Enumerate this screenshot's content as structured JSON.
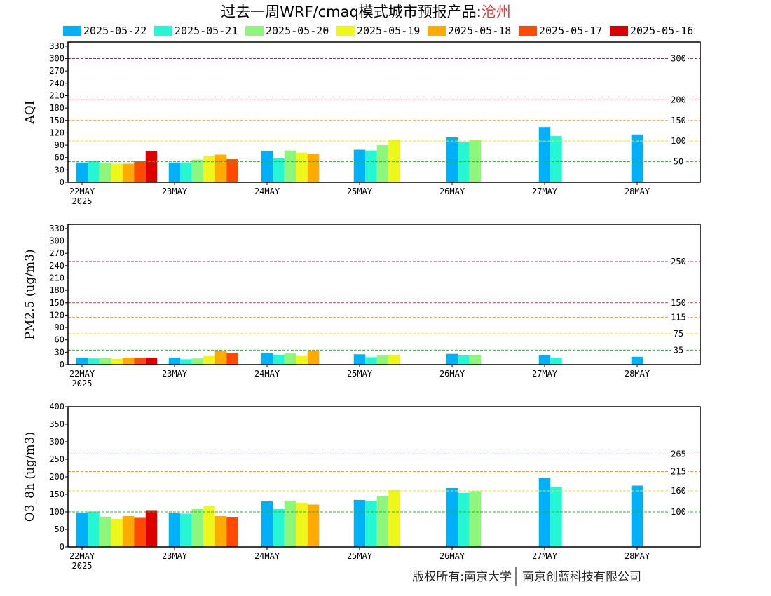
{
  "title_main": "过去一周WRF/cmaq模式城市预报产品:",
  "title_city": "沧州",
  "copyright_left": "版权所有:南京大学",
  "copyright_right": "南京创蓝科技有限公司",
  "colors": {
    "2025-05-22": "#00b0f8",
    "2025-05-21": "#25f7d4",
    "2025-05-20": "#8ef77b",
    "2025-05-19": "#eef719",
    "2025-05-18": "#ffab00",
    "2025-05-17": "#ff4a00",
    "2025-05-16": "#dd0000",
    "title_city": "#e03c3c",
    "line_green": "#22bb22",
    "line_yellow": "#e8e800",
    "line_orange": "#f0a000",
    "line_red": "#dd3333",
    "line_maroon": "#b02060"
  },
  "chart_data": [
    {
      "type": "bar",
      "ylabel": "AQI",
      "ylim": [
        0,
        340
      ],
      "yticks": [
        0,
        30,
        60,
        90,
        120,
        150,
        180,
        210,
        240,
        270,
        300,
        330
      ],
      "categories": [
        "22MAY",
        "23MAY",
        "24MAY",
        "25MAY",
        "26MAY",
        "27MAY",
        "28MAY"
      ],
      "year_label": "2025",
      "series": [
        {
          "name": "2025-05-22",
          "values": [
            48,
            48,
            76,
            79,
            109,
            134,
            116
          ]
        },
        {
          "name": "2025-05-21",
          "values": [
            52,
            48,
            58,
            77,
            97,
            112,
            null
          ]
        },
        {
          "name": "2025-05-20",
          "values": [
            47,
            55,
            77,
            90,
            102,
            null,
            null
          ]
        },
        {
          "name": "2025-05-19",
          "values": [
            45,
            63,
            72,
            103,
            null,
            null,
            null
          ]
        },
        {
          "name": "2025-05-18",
          "values": [
            45,
            67,
            69,
            null,
            null,
            null,
            null
          ]
        },
        {
          "name": "2025-05-17",
          "values": [
            51,
            56,
            null,
            null,
            null,
            null,
            null
          ]
        },
        {
          "name": "2025-05-16",
          "values": [
            76,
            null,
            null,
            null,
            null,
            null,
            null
          ]
        }
      ],
      "reference_lines": [
        {
          "value": 300,
          "label": "300",
          "color": "line_maroon"
        },
        {
          "value": 200,
          "label": "200",
          "color": "line_red"
        },
        {
          "value": 150,
          "label": "150",
          "color": "line_orange"
        },
        {
          "value": 100,
          "label": "100",
          "color": "line_yellow"
        },
        {
          "value": 50,
          "label": "50",
          "color": "line_green"
        }
      ]
    },
    {
      "type": "bar",
      "ylabel": "PM2.5 (ug/m3)",
      "ylim": [
        0,
        340
      ],
      "yticks": [
        0,
        30,
        60,
        90,
        120,
        150,
        180,
        210,
        240,
        270,
        300,
        330
      ],
      "categories": [
        "22MAY",
        "23MAY",
        "24MAY",
        "25MAY",
        "26MAY",
        "27MAY",
        "28MAY"
      ],
      "year_label": "2025",
      "series": [
        {
          "name": "2025-05-22",
          "values": [
            17,
            17,
            28,
            25,
            26,
            23,
            19
          ]
        },
        {
          "name": "2025-05-21",
          "values": [
            15,
            13,
            24,
            18,
            22,
            17,
            null
          ]
        },
        {
          "name": "2025-05-20",
          "values": [
            16,
            15,
            27,
            22,
            24,
            null,
            null
          ]
        },
        {
          "name": "2025-05-19",
          "values": [
            14,
            21,
            21,
            24,
            null,
            null,
            null
          ]
        },
        {
          "name": "2025-05-18",
          "values": [
            17,
            33,
            34,
            null,
            null,
            null,
            null
          ]
        },
        {
          "name": "2025-05-17",
          "values": [
            16,
            28,
            null,
            null,
            null,
            null,
            null
          ]
        },
        {
          "name": "2025-05-16",
          "values": [
            17,
            null,
            null,
            null,
            null,
            null,
            null
          ]
        }
      ],
      "reference_lines": [
        {
          "value": 250,
          "label": "250",
          "color": "line_maroon"
        },
        {
          "value": 150,
          "label": "150",
          "color": "line_red"
        },
        {
          "value": 115,
          "label": "115",
          "color": "line_orange"
        },
        {
          "value": 75,
          "label": "75",
          "color": "line_yellow"
        },
        {
          "value": 35,
          "label": "35",
          "color": "line_green"
        }
      ]
    },
    {
      "type": "bar",
      "ylabel": "O3_8h (ug/m3)",
      "ylim": [
        0,
        400
      ],
      "yticks": [
        0,
        50,
        100,
        150,
        200,
        250,
        300,
        350,
        400
      ],
      "categories": [
        "22MAY",
        "23MAY",
        "24MAY",
        "25MAY",
        "26MAY",
        "27MAY",
        "28MAY"
      ],
      "year_label": "2025",
      "series": [
        {
          "name": "2025-05-22",
          "values": [
            98,
            96,
            130,
            134,
            168,
            196,
            175
          ]
        },
        {
          "name": "2025-05-21",
          "values": [
            101,
            95,
            108,
            132,
            154,
            171,
            null
          ]
        },
        {
          "name": "2025-05-20",
          "values": [
            86,
            108,
            132,
            145,
            159,
            null,
            null
          ]
        },
        {
          "name": "2025-05-19",
          "values": [
            80,
            116,
            126,
            162,
            null,
            null,
            null
          ]
        },
        {
          "name": "2025-05-18",
          "values": [
            88,
            88,
            121,
            null,
            null,
            null,
            null
          ]
        },
        {
          "name": "2025-05-17",
          "values": [
            83,
            84,
            null,
            null,
            null,
            null,
            null
          ]
        },
        {
          "name": "2025-05-16",
          "values": [
            103,
            null,
            null,
            null,
            null,
            null,
            null
          ]
        }
      ],
      "reference_lines": [
        {
          "value": 265,
          "label": "265",
          "color": "line_red"
        },
        {
          "value": 215,
          "label": "215",
          "color": "line_orange"
        },
        {
          "value": 160,
          "label": "160",
          "color": "line_yellow"
        },
        {
          "value": 100,
          "label": "100",
          "color": "line_green"
        }
      ]
    }
  ]
}
